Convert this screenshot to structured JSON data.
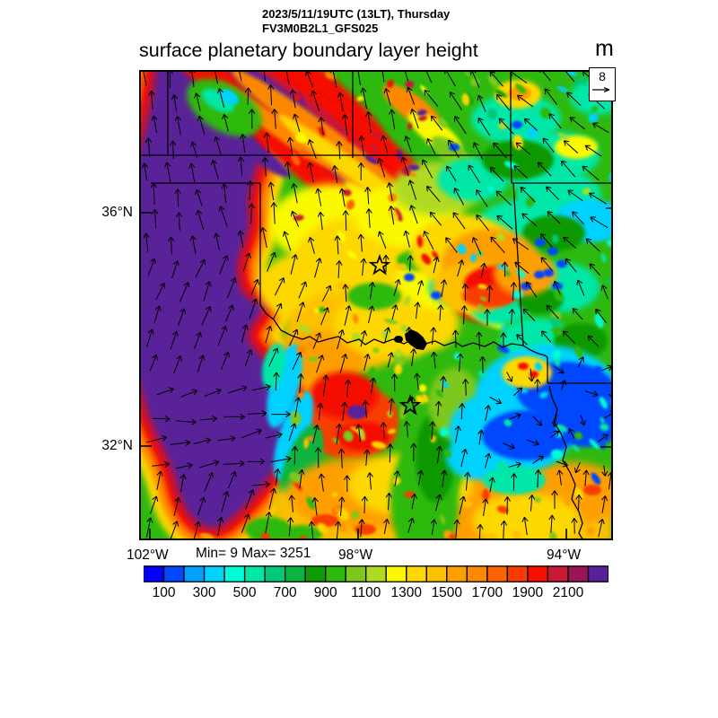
{
  "header": {
    "run_line": "2023/5/11/19UTC (13LT), Thursday",
    "model_line": "FV3M0B2L1_GFS025",
    "title": "surface planetary boundary layer height",
    "units_label": "m"
  },
  "reference_box": {
    "value": "8"
  },
  "axes": {
    "lat_labels": [
      "36°N",
      "32°N"
    ],
    "lon_labels": [
      "102°W",
      "98°W",
      "94°W"
    ]
  },
  "stats_line": "Min= 9 Max= 3251",
  "colorbar": {
    "tick_labels": [
      "100",
      "300",
      "500",
      "700",
      "900",
      "1100",
      "1300",
      "1500",
      "1700",
      "1900",
      "2100"
    ],
    "segment_colors": [
      "#0202fa",
      "#0347fe",
      "#02a0fe",
      "#01d1fe",
      "#01fdd5",
      "#02e7a8",
      "#03c87a",
      "#0ab43e",
      "#0f9a06",
      "#2eb90f",
      "#7dc81e",
      "#b0da20",
      "#fbf900",
      "#fcd800",
      "#fdc001",
      "#fd9f01",
      "#fd8801",
      "#fb6402",
      "#f83c03",
      "#f51000",
      "#c81737",
      "#9a1557",
      "#5a2099"
    ]
  },
  "chart_data": {
    "type": "heatmap",
    "subtype": "filled-contour weather map with wind vectors",
    "title": "surface planetary boundary layer height",
    "valid_time": "2023/5/11/19UTC (13LT), Thursday",
    "model_id": "FV3M0B2L1_GFS025",
    "units": "m",
    "field_min": 9,
    "field_max": 3251,
    "wind_reference_value": 8,
    "lat_ticks": [
      "36°N",
      "32°N"
    ],
    "lon_ticks": [
      "102°W",
      "98°W",
      "94°W"
    ],
    "colorbar_levels": [
      100,
      300,
      500,
      700,
      900,
      1100,
      1300,
      1500,
      1700,
      1900,
      2100
    ],
    "colorbar_interval": 100,
    "colorbar_colors": [
      "#0202fa",
      "#0347fe",
      "#02a0fe",
      "#01d1fe",
      "#01fdd5",
      "#02e7a8",
      "#03c87a",
      "#0ab43e",
      "#0f9a06",
      "#2eb90f",
      "#7dc81e",
      "#b0da20",
      "#fbf900",
      "#fcd800",
      "#fdc001",
      "#fd9f01",
      "#fd8801",
      "#fb6402",
      "#f83c03",
      "#f51000",
      "#c81737",
      "#9a1557",
      "#5a2099"
    ],
    "field_summary": [
      {
        "region": "west column (eastern NM / west TX)",
        "value_m": "2200+ deep-purple maximum with red-orange fringe"
      },
      {
        "region": "northwest diagonal streaks (TX-OK panhandles, KS)",
        "value_m": "1800-2300 red with embedded purple streaks"
      },
      {
        "region": "central OK / north TX",
        "value_m": "1100-1600 yellow-gold-orange"
      },
      {
        "region": "east OK / MO / AR",
        "value_m": "600-1000 green with teal patches"
      },
      {
        "region": "southeast (east TX / LA)",
        "value_m": "100-500 cyan-blue minimum"
      },
      {
        "region": "bottom (central TX)",
        "value_m": "1300-1600 gold-orange"
      }
    ],
    "annotations": [
      {
        "type": "star-marker",
        "count": 2,
        "locations": "central Oklahoma; north Texas"
      },
      {
        "type": "wind-vectors",
        "pattern": "southerly (pointing north) over most of map, northwesterly-pointing upper right, easterly-pointing lower west, weak/variable in blue southeast"
      },
      {
        "type": "geography",
        "items": "state borders (KS/OK/TX/MO/AR panhandle lines), Red River border with lake, Sabine/AR river lines"
      }
    ]
  }
}
